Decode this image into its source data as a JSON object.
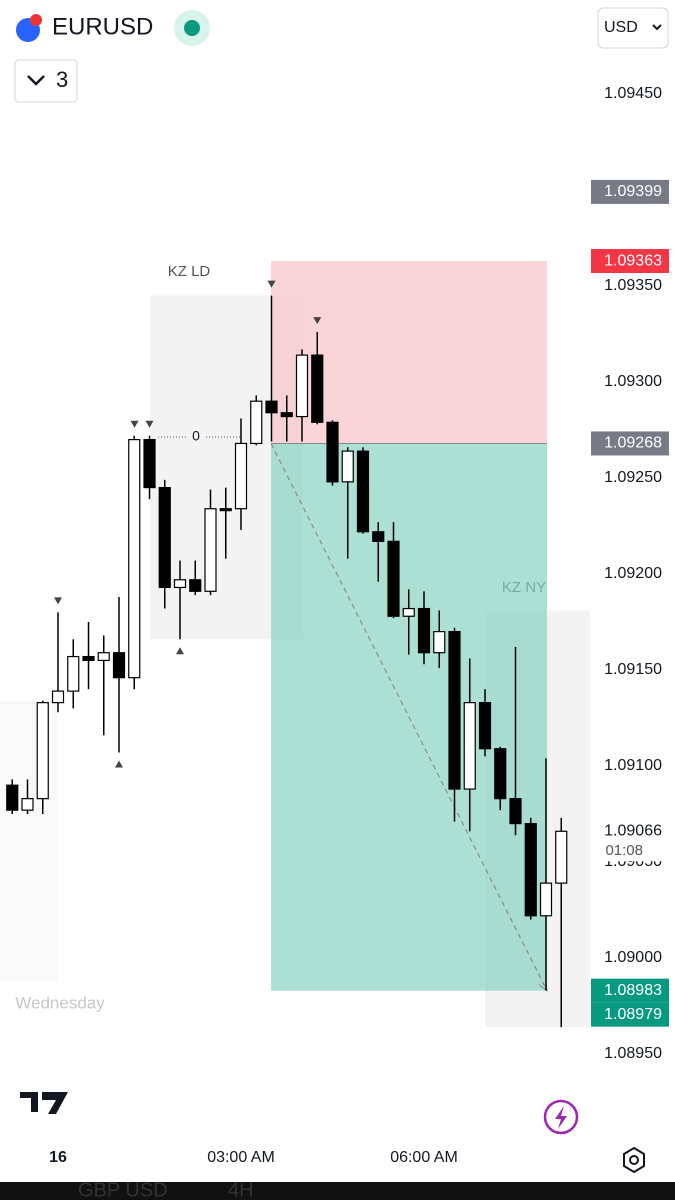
{
  "header": {
    "symbol": "EURUSD",
    "currency": "USD",
    "indicator_count": "3"
  },
  "chart_data": {
    "type": "candlestick",
    "categories": [
      null,
      null,
      null,
      "16",
      null,
      null,
      null,
      null,
      null,
      null,
      null,
      null,
      null,
      null,
      null,
      "03:00 AM",
      null,
      null,
      null,
      null,
      null,
      null,
      null,
      null,
      null,
      null,
      null,
      "06:00 AM",
      null,
      null,
      null,
      null,
      null,
      null,
      null,
      null,
      null
    ],
    "open": [
      1.0909,
      1.09077,
      1.09083,
      1.09133,
      1.09139,
      1.09157,
      1.09155,
      1.09159,
      1.09146,
      1.0927,
      1.09245,
      1.09193,
      1.09197,
      1.09191,
      1.09234,
      1.09234,
      1.09268,
      1.0929,
      1.09284,
      1.09282,
      1.09314,
      1.09279,
      1.09248,
      1.09264,
      1.09222,
      1.09217,
      1.09178,
      1.09182,
      1.09159,
      1.0917,
      1.09088,
      1.09133,
      1.09109,
      1.09083,
      1.0907,
      1.09022,
      1.09039
    ],
    "high": [
      1.09093,
      1.09093,
      1.09134,
      1.0918,
      1.09166,
      1.09175,
      1.09168,
      1.09188,
      1.09272,
      1.09272,
      1.09249,
      1.09207,
      1.09207,
      1.09244,
      1.09245,
      1.09281,
      1.09293,
      1.09345,
      1.09293,
      1.09317,
      1.09326,
      1.0928,
      1.09266,
      1.09266,
      1.09227,
      1.09227,
      1.09192,
      1.09191,
      1.09181,
      1.09172,
      1.09156,
      1.0914,
      1.0911,
      1.09162,
      1.09073,
      1.09104,
      1.09073
    ],
    "low": [
      1.09075,
      1.09075,
      1.09075,
      1.09128,
      1.0913,
      1.0914,
      1.09116,
      1.09107,
      1.0914,
      1.09239,
      1.09182,
      1.09166,
      1.09189,
      1.09189,
      1.09208,
      1.09223,
      1.09267,
      1.09269,
      1.09269,
      1.09269,
      1.09278,
      1.09246,
      1.09208,
      1.09221,
      1.09196,
      1.09177,
      1.09158,
      1.09153,
      1.09151,
      1.09071,
      1.09066,
      1.09105,
      1.09077,
      1.09064,
      1.0902,
      1.08983,
      1.08964
    ],
    "close": [
      1.09077,
      1.09083,
      1.09133,
      1.09139,
      1.09157,
      1.09155,
      1.09159,
      1.09146,
      1.0927,
      1.09245,
      1.09193,
      1.09197,
      1.09191,
      1.09234,
      1.09233,
      1.09268,
      1.0929,
      1.09284,
      1.09282,
      1.09314,
      1.09279,
      1.09248,
      1.09264,
      1.09222,
      1.09217,
      1.09178,
      1.09182,
      1.09159,
      1.0917,
      1.09088,
      1.09133,
      1.09109,
      1.09083,
      1.0907,
      1.09022,
      1.09039,
      1.09066
    ],
    "up_color": "#ffffff",
    "down_color": "#000000",
    "ylim": [
      1.0894,
      1.0949
    ],
    "yticks": [
      {
        "value": 1.0945,
        "label": "1.09450"
      },
      {
        "value": 1.0935,
        "label": "1.09350"
      },
      {
        "value": 1.093,
        "label": "1.09300"
      },
      {
        "value": 1.0925,
        "label": "1.09250"
      },
      {
        "value": 1.092,
        "label": "1.09200"
      },
      {
        "value": 1.0915,
        "label": "1.09150"
      },
      {
        "value": 1.091,
        "label": "1.09100"
      },
      {
        "value": 1.0905,
        "label": "1.09050"
      },
      {
        "value": 1.09,
        "label": "1.09000"
      },
      {
        "value": 1.0895,
        "label": "1.08950"
      }
    ],
    "price_labels": [
      {
        "value": 1.09399,
        "color": "#787b86"
      },
      {
        "value": 1.09363,
        "color": "#f23645"
      },
      {
        "value": 1.09268,
        "color": "#787b86"
      },
      {
        "value": 1.09066,
        "countdown": "01:08",
        "color": "#ffffff"
      },
      {
        "value": 1.08983,
        "color": "#089981"
      },
      {
        "value": 1.08979,
        "color": "#089981"
      }
    ],
    "position": {
      "entry": 1.09268,
      "stop": 1.09363,
      "target": 1.08983,
      "entry_label": "0"
    },
    "sessions": [
      {
        "label": "KZ LD",
        "top": 1.09345,
        "bottom": 1.09166
      },
      {
        "label": "KZ NY",
        "top": 1.09181,
        "bottom": 1.08964
      },
      {
        "label": "Wednesday",
        "top": 1.09134,
        "bottom": 1.08988
      }
    ]
  },
  "footer_peek": [
    "GBP USD",
    "4H"
  ]
}
